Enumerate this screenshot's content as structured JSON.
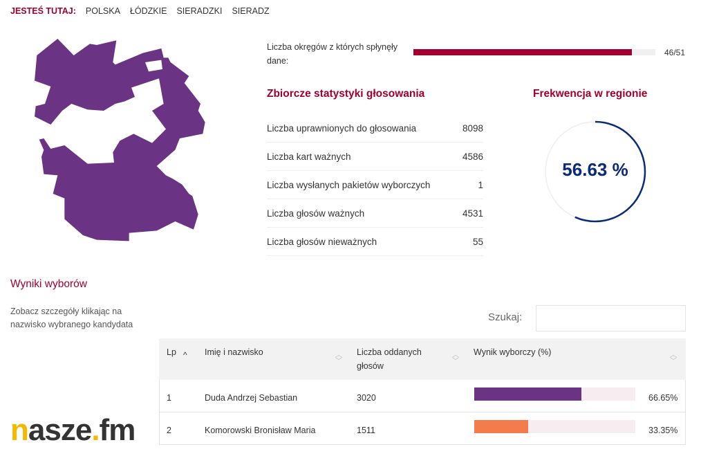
{
  "breadcrumb": {
    "label": "JESTEŚ TUTAJ:",
    "items": [
      "POLSKA",
      "ŁÓDZKIE",
      "SIERADZKI",
      "SIERADZ"
    ]
  },
  "progress": {
    "label": "Liczba okręgów z których spłynęły dane:",
    "value": "46/51",
    "fraction": 0.902,
    "color": "#a0002f"
  },
  "stats": {
    "title": "Zbiorcze statystyki głosowania",
    "rows": [
      {
        "label": "Liczba uprawnionych do głosowania",
        "value": "8098"
      },
      {
        "label": "Liczba kart ważnych",
        "value": "4586"
      },
      {
        "label": "Liczba wysłanych pakietów wyborczych",
        "value": "1"
      },
      {
        "label": "Liczba głosów ważnych",
        "value": "4531"
      },
      {
        "label": "Liczba głosów nieważnych",
        "value": "55"
      }
    ]
  },
  "turnout": {
    "title": "Frekwencja w regionie",
    "value": "56.63 %",
    "percent": 56.63,
    "color": "#0a2a7a"
  },
  "results": {
    "title": "Wyniki wyborów",
    "hint": "Zobacz szczegóły klikając na nazwisko wybranego kandydata",
    "search_label": "Szukaj:",
    "search_value": "",
    "columns": [
      "Lp",
      "Imię i nazwisko",
      "Liczba oddanych głosów",
      "Wynik wyborczy (%)"
    ],
    "rows": [
      {
        "lp": "1",
        "name": "Duda Andrzej Sebastian",
        "votes": "3020",
        "pct": "66.65%",
        "percent": 66.65,
        "color": "#6a3384"
      },
      {
        "lp": "2",
        "name": "Komorowski Bronisław Maria",
        "votes": "1511",
        "pct": "33.35%",
        "percent": 33.35,
        "color": "#f47c4c"
      }
    ]
  },
  "logo": {
    "text": "nasze.fm"
  },
  "map": {
    "color": "#6a3384"
  }
}
